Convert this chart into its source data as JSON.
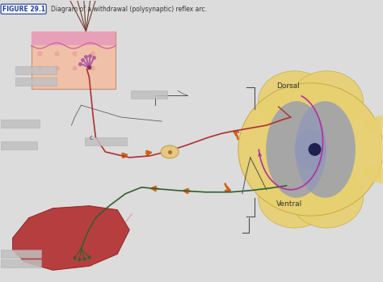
{
  "title": "FIGURE 29.1",
  "subtitle": "Diagram of a withdrawal (polysynaptic) reflex arc.",
  "background_color": "#dcdcdc",
  "labels": {
    "dorsal": "Dorsal",
    "ventral": "Ventral"
  },
  "colors": {
    "skin_bg": "#f0c0a8",
    "skin_top": "#e8b0b0",
    "skin_wave": "#d070a0",
    "skin_purple": "#b060a0",
    "hair_color": "#704030",
    "sc_outer": "#e8d070",
    "sc_outer_edge": "#c8a840",
    "sc_gray": "#9098b8",
    "sc_center": "#202050",
    "nerve_sensory": "#b03030",
    "nerve_motor": "#306030",
    "nerve_interneuron": "#b030a0",
    "muscle_red": "#b02828",
    "muscle_light": "#c84040",
    "arrow_orange": "#d06010",
    "label_gray": "#b0b0b0",
    "line_dark": "#505050"
  }
}
